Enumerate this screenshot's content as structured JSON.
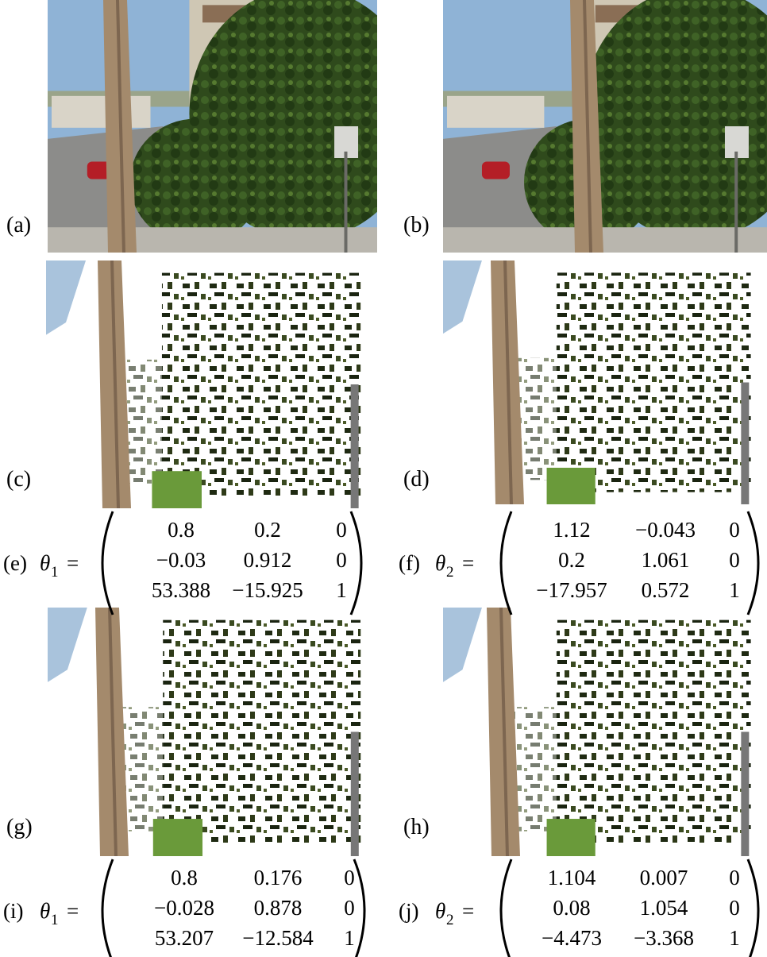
{
  "panels": [
    {
      "label": "(a)"
    },
    {
      "label": "(b)"
    },
    {
      "label": "(c)"
    },
    {
      "label": "(d)"
    },
    {
      "label": "(g)"
    },
    {
      "label": "(h)"
    }
  ],
  "matrices": [
    {
      "label": "(e)",
      "symbol": "θ",
      "subscript": "1",
      "relation": "=",
      "rows": [
        [
          "0.8",
          "0.2",
          "0"
        ],
        [
          "−0.03",
          "0.912",
          "0"
        ],
        [
          "53.388",
          "−15.925",
          "1"
        ]
      ]
    },
    {
      "label": "(f)",
      "symbol": "θ",
      "subscript": "2",
      "relation": "=",
      "rows": [
        [
          "1.12",
          "−0.043",
          "0"
        ],
        [
          "0.2",
          "1.061",
          "0"
        ],
        [
          "−17.957",
          "0.572",
          "1"
        ]
      ]
    },
    {
      "label": "(i)",
      "symbol": "θ",
      "subscript": "1",
      "relation": "=",
      "rows": [
        [
          "0.8",
          "0.176",
          "0"
        ],
        [
          "−0.028",
          "0.878",
          "0"
        ],
        [
          "53.207",
          "−12.584",
          "1"
        ]
      ]
    },
    {
      "label": "(j)",
      "symbol": "θ",
      "subscript": "2",
      "relation": "=",
      "rows": [
        [
          "1.104",
          "0.007",
          "0"
        ],
        [
          "0.08",
          "1.054",
          "0"
        ],
        [
          "−4.473",
          "−3.368",
          "1"
        ]
      ]
    }
  ]
}
